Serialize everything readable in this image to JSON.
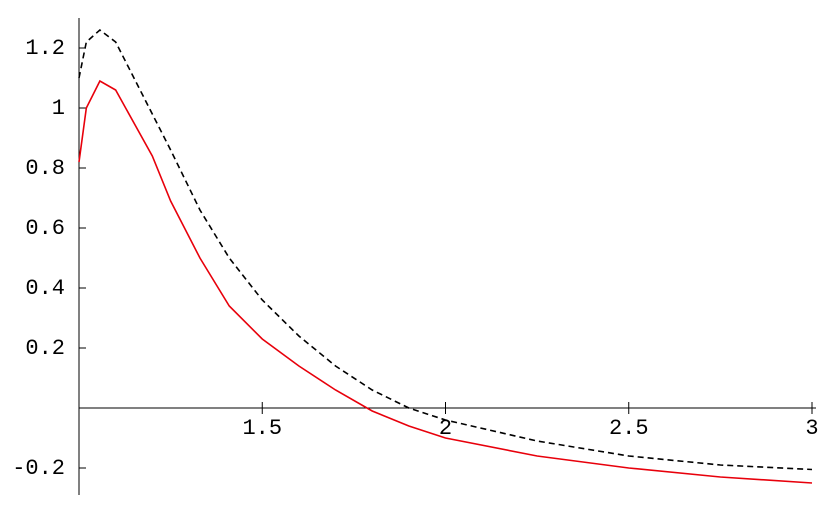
{
  "chart_data": {
    "type": "line",
    "x": [
      1,
      1.02,
      1.057,
      1.1,
      1.2,
      1.25,
      1.33,
      1.41,
      1.5,
      1.6,
      1.7,
      1.8,
      1.9,
      2,
      2.25,
      2.5,
      2.75,
      3
    ],
    "series": [
      {
        "color": "#e8000b",
        "line_style": "solid",
        "values": [
          0.82,
          1.0,
          1.09,
          1.06,
          0.84,
          0.69,
          0.5,
          0.34,
          0.23,
          0.14,
          0.06,
          -0.01,
          -0.06,
          -0.1,
          -0.16,
          -0.2,
          -0.23,
          -0.25
        ]
      },
      {
        "color": "#000000",
        "line_style": "dashed",
        "values": [
          1.1,
          1.22,
          1.26,
          1.22,
          0.98,
          0.86,
          0.66,
          0.5,
          0.36,
          0.24,
          0.14,
          0.06,
          0.0,
          -0.04,
          -0.11,
          -0.16,
          -0.19,
          -0.205
        ]
      }
    ],
    "xlim": [
      1,
      3
    ],
    "xticks": [
      1.5,
      2,
      2.5,
      3
    ],
    "ylim": [
      -0.29,
      1.3
    ],
    "yticks": [
      -0.2,
      0.2,
      0.4,
      0.6,
      0.8,
      1,
      1.2
    ],
    "grid": false
  }
}
